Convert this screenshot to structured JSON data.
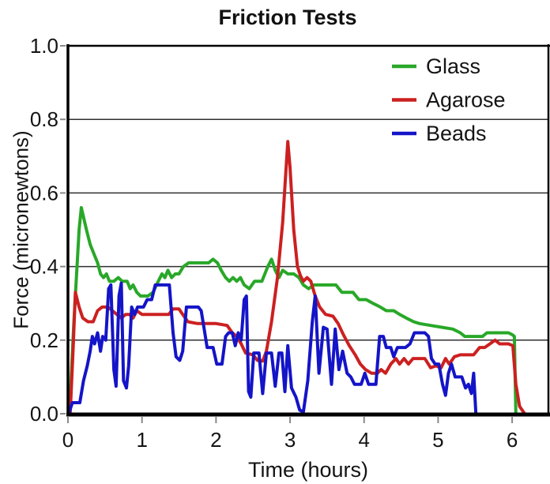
{
  "chart_data": {
    "type": "line",
    "title": "Friction Tests",
    "xlabel": "Time (hours)",
    "ylabel": "Force (micronewtons)",
    "xlim": [
      0,
      6.49
    ],
    "ylim": [
      0,
      1.0
    ],
    "xtick_values": [
      0,
      1,
      2,
      3,
      4,
      5,
      6
    ],
    "xtick_labels": [
      "0",
      "1",
      "2",
      "3",
      "4",
      "5",
      "6"
    ],
    "ytick_values": [
      0,
      0.2,
      0.4,
      0.6,
      0.8,
      1.0
    ],
    "ytick_labels": [
      "0.0",
      "0.2",
      "0.4",
      "0.6",
      "0.8",
      "1.0"
    ],
    "grid": "horizontal gridlines at each y tick, plot framed in black",
    "legend_position": "top-right inside plot, no border",
    "frame_color": "#000000",
    "gridline_color": "#2f2f2f",
    "tick_color": "#8a8a8a",
    "text_color": "#141414",
    "series": [
      {
        "name": "Glass",
        "color": "#28a828",
        "points": [
          [
            0.02,
            0
          ],
          [
            0.08,
            0.25
          ],
          [
            0.15,
            0.5
          ],
          [
            0.18,
            0.56
          ],
          [
            0.25,
            0.5
          ],
          [
            0.3,
            0.46
          ],
          [
            0.36,
            0.43
          ],
          [
            0.4,
            0.41
          ],
          [
            0.44,
            0.38
          ],
          [
            0.48,
            0.37
          ],
          [
            0.52,
            0.38
          ],
          [
            0.56,
            0.36
          ],
          [
            0.62,
            0.36
          ],
          [
            0.68,
            0.37
          ],
          [
            0.73,
            0.36
          ],
          [
            0.8,
            0.36
          ],
          [
            0.84,
            0.34
          ],
          [
            0.88,
            0.35
          ],
          [
            0.93,
            0.33
          ],
          [
            0.98,
            0.32
          ],
          [
            1.08,
            0.32
          ],
          [
            1.15,
            0.33
          ],
          [
            1.22,
            0.36
          ],
          [
            1.27,
            0.38
          ],
          [
            1.31,
            0.37
          ],
          [
            1.35,
            0.39
          ],
          [
            1.4,
            0.37
          ],
          [
            1.45,
            0.38
          ],
          [
            1.5,
            0.38
          ],
          [
            1.56,
            0.4
          ],
          [
            1.63,
            0.41
          ],
          [
            1.72,
            0.41
          ],
          [
            1.82,
            0.41
          ],
          [
            1.9,
            0.41
          ],
          [
            1.96,
            0.42
          ],
          [
            2.02,
            0.41
          ],
          [
            2.07,
            0.39
          ],
          [
            2.13,
            0.37
          ],
          [
            2.18,
            0.36
          ],
          [
            2.23,
            0.37
          ],
          [
            2.28,
            0.36
          ],
          [
            2.33,
            0.37
          ],
          [
            2.38,
            0.35
          ],
          [
            2.45,
            0.34
          ],
          [
            2.52,
            0.36
          ],
          [
            2.62,
            0.36
          ],
          [
            2.7,
            0.4
          ],
          [
            2.75,
            0.42
          ],
          [
            2.8,
            0.39
          ],
          [
            2.85,
            0.37
          ],
          [
            2.9,
            0.39
          ],
          [
            2.97,
            0.38
          ],
          [
            3.05,
            0.38
          ],
          [
            3.12,
            0.37
          ],
          [
            3.18,
            0.35
          ],
          [
            3.25,
            0.34
          ],
          [
            3.32,
            0.35
          ],
          [
            3.4,
            0.35
          ],
          [
            3.52,
            0.35
          ],
          [
            3.62,
            0.35
          ],
          [
            3.7,
            0.33
          ],
          [
            3.85,
            0.33
          ],
          [
            3.93,
            0.31
          ],
          [
            4.03,
            0.31
          ],
          [
            4.12,
            0.3
          ],
          [
            4.22,
            0.29
          ],
          [
            4.3,
            0.28
          ],
          [
            4.4,
            0.28
          ],
          [
            4.48,
            0.27
          ],
          [
            4.57,
            0.26
          ],
          [
            4.67,
            0.25
          ],
          [
            4.75,
            0.245
          ],
          [
            4.9,
            0.24
          ],
          [
            5.05,
            0.235
          ],
          [
            5.2,
            0.23
          ],
          [
            5.3,
            0.22
          ],
          [
            5.36,
            0.21
          ],
          [
            5.5,
            0.21
          ],
          [
            5.6,
            0.21
          ],
          [
            5.66,
            0.22
          ],
          [
            5.85,
            0.22
          ],
          [
            5.95,
            0.22
          ],
          [
            6.0,
            0.215
          ],
          [
            6.03,
            0.21
          ],
          [
            6.05,
            0
          ]
        ]
      },
      {
        "name": "Agarose",
        "color": "#cc2020",
        "points": [
          [
            0.03,
            0
          ],
          [
            0.07,
            0.18
          ],
          [
            0.1,
            0.33
          ],
          [
            0.15,
            0.29
          ],
          [
            0.2,
            0.26
          ],
          [
            0.27,
            0.25
          ],
          [
            0.34,
            0.25
          ],
          [
            0.4,
            0.28
          ],
          [
            0.46,
            0.29
          ],
          [
            0.54,
            0.29
          ],
          [
            0.6,
            0.28
          ],
          [
            0.66,
            0.27
          ],
          [
            0.72,
            0.26
          ],
          [
            0.78,
            0.27
          ],
          [
            0.83,
            0.27
          ],
          [
            0.88,
            0.26
          ],
          [
            0.93,
            0.28
          ],
          [
            1.0,
            0.27
          ],
          [
            1.2,
            0.27
          ],
          [
            1.36,
            0.27
          ],
          [
            1.42,
            0.285
          ],
          [
            1.5,
            0.285
          ],
          [
            1.55,
            0.27
          ],
          [
            1.62,
            0.25
          ],
          [
            1.75,
            0.245
          ],
          [
            2.0,
            0.245
          ],
          [
            2.15,
            0.24
          ],
          [
            2.22,
            0.22
          ],
          [
            2.28,
            0.21
          ],
          [
            2.34,
            0.19
          ],
          [
            2.4,
            0.165
          ],
          [
            2.5,
            0.16
          ],
          [
            2.56,
            0.145
          ],
          [
            2.63,
            0.143
          ],
          [
            2.68,
            0.17
          ],
          [
            2.75,
            0.25
          ],
          [
            2.83,
            0.37
          ],
          [
            2.9,
            0.52
          ],
          [
            2.95,
            0.68
          ],
          [
            2.97,
            0.74
          ],
          [
            3.0,
            0.67
          ],
          [
            3.05,
            0.5
          ],
          [
            3.1,
            0.4
          ],
          [
            3.14,
            0.375
          ],
          [
            3.18,
            0.36
          ],
          [
            3.23,
            0.37
          ],
          [
            3.28,
            0.36
          ],
          [
            3.34,
            0.32
          ],
          [
            3.4,
            0.29
          ],
          [
            3.48,
            0.27
          ],
          [
            3.58,
            0.265
          ],
          [
            3.65,
            0.245
          ],
          [
            3.72,
            0.215
          ],
          [
            3.8,
            0.185
          ],
          [
            3.88,
            0.16
          ],
          [
            3.95,
            0.135
          ],
          [
            4.02,
            0.12
          ],
          [
            4.1,
            0.11
          ],
          [
            4.18,
            0.11
          ],
          [
            4.23,
            0.12
          ],
          [
            4.29,
            0.11
          ],
          [
            4.36,
            0.135
          ],
          [
            4.43,
            0.15
          ],
          [
            4.48,
            0.135
          ],
          [
            4.54,
            0.15
          ],
          [
            4.6,
            0.135
          ],
          [
            4.66,
            0.15
          ],
          [
            4.82,
            0.15
          ],
          [
            4.9,
            0.125
          ],
          [
            4.97,
            0.13
          ],
          [
            5.04,
            0.125
          ],
          [
            5.1,
            0.15
          ],
          [
            5.15,
            0.135
          ],
          [
            5.22,
            0.155
          ],
          [
            5.3,
            0.16
          ],
          [
            5.48,
            0.16
          ],
          [
            5.56,
            0.18
          ],
          [
            5.63,
            0.18
          ],
          [
            5.7,
            0.19
          ],
          [
            5.77,
            0.2
          ],
          [
            5.83,
            0.19
          ],
          [
            5.95,
            0.19
          ],
          [
            6.01,
            0.185
          ],
          [
            6.05,
            0.08
          ],
          [
            6.1,
            0.02
          ],
          [
            6.17,
            0
          ]
        ]
      },
      {
        "name": "Beads",
        "color": "#1414c8",
        "points": [
          [
            0.01,
            0
          ],
          [
            0.06,
            0.03
          ],
          [
            0.16,
            0.03
          ],
          [
            0.21,
            0.09
          ],
          [
            0.26,
            0.13
          ],
          [
            0.3,
            0.17
          ],
          [
            0.33,
            0.21
          ],
          [
            0.36,
            0.19
          ],
          [
            0.4,
            0.22
          ],
          [
            0.44,
            0.17
          ],
          [
            0.47,
            0.21
          ],
          [
            0.51,
            0.2
          ],
          [
            0.55,
            0.34
          ],
          [
            0.58,
            0.35
          ],
          [
            0.62,
            0.12
          ],
          [
            0.65,
            0.075
          ],
          [
            0.69,
            0.32
          ],
          [
            0.72,
            0.355
          ],
          [
            0.75,
            0.09
          ],
          [
            0.79,
            0.07
          ],
          [
            0.82,
            0.13
          ],
          [
            0.86,
            0.29
          ],
          [
            0.9,
            0.27
          ],
          [
            0.94,
            0.29
          ],
          [
            1.02,
            0.29
          ],
          [
            1.07,
            0.31
          ],
          [
            1.13,
            0.31
          ],
          [
            1.18,
            0.35
          ],
          [
            1.25,
            0.35
          ],
          [
            1.37,
            0.35
          ],
          [
            1.42,
            0.22
          ],
          [
            1.46,
            0.155
          ],
          [
            1.51,
            0.145
          ],
          [
            1.55,
            0.17
          ],
          [
            1.6,
            0.29
          ],
          [
            1.68,
            0.29
          ],
          [
            1.76,
            0.29
          ],
          [
            1.8,
            0.28
          ],
          [
            1.84,
            0.23
          ],
          [
            1.88,
            0.18
          ],
          [
            1.96,
            0.18
          ],
          [
            2.01,
            0.135
          ],
          [
            2.08,
            0.135
          ],
          [
            2.13,
            0.21
          ],
          [
            2.17,
            0.22
          ],
          [
            2.22,
            0.22
          ],
          [
            2.26,
            0.185
          ],
          [
            2.3,
            0.22
          ],
          [
            2.34,
            0.2
          ],
          [
            2.38,
            0.31
          ],
          [
            2.41,
            0.32
          ],
          [
            2.44,
            0.06
          ],
          [
            2.47,
            0.045
          ],
          [
            2.51,
            0.165
          ],
          [
            2.58,
            0.165
          ],
          [
            2.63,
            0.055
          ],
          [
            2.68,
            0.165
          ],
          [
            2.75,
            0.165
          ],
          [
            2.8,
            0.075
          ],
          [
            2.85,
            0.165
          ],
          [
            2.89,
            0.165
          ],
          [
            2.93,
            0.06
          ],
          [
            2.97,
            0.185
          ],
          [
            3.02,
            0.07
          ],
          [
            3.08,
            0.045
          ],
          [
            3.13,
            0.01
          ],
          [
            3.18,
            0.005
          ],
          [
            3.24,
            0.09
          ],
          [
            3.3,
            0.25
          ],
          [
            3.34,
            0.32
          ],
          [
            3.39,
            0.11
          ],
          [
            3.45,
            0.235
          ],
          [
            3.5,
            0.23
          ],
          [
            3.56,
            0.08
          ],
          [
            3.61,
            0.23
          ],
          [
            3.66,
            0.12
          ],
          [
            3.71,
            0.17
          ],
          [
            3.77,
            0.11
          ],
          [
            3.82,
            0.1
          ],
          [
            3.87,
            0.08
          ],
          [
            3.96,
            0.08
          ],
          [
            4.01,
            0.11
          ],
          [
            4.06,
            0.08
          ],
          [
            4.16,
            0.08
          ],
          [
            4.21,
            0.21
          ],
          [
            4.26,
            0.21
          ],
          [
            4.3,
            0.18
          ],
          [
            4.36,
            0.18
          ],
          [
            4.4,
            0.155
          ],
          [
            4.45,
            0.18
          ],
          [
            4.56,
            0.18
          ],
          [
            4.62,
            0.19
          ],
          [
            4.68,
            0.22
          ],
          [
            4.82,
            0.22
          ],
          [
            4.87,
            0.21
          ],
          [
            4.91,
            0.15
          ],
          [
            4.96,
            0.135
          ],
          [
            5.01,
            0.135
          ],
          [
            5.06,
            0.08
          ],
          [
            5.1,
            0.05
          ],
          [
            5.14,
            0.11
          ],
          [
            5.18,
            0.135
          ],
          [
            5.23,
            0.1
          ],
          [
            5.32,
            0.1
          ],
          [
            5.37,
            0.07
          ],
          [
            5.41,
            0.08
          ],
          [
            5.45,
            0.055
          ],
          [
            5.48,
            0.11
          ],
          [
            5.51,
            0
          ]
        ]
      }
    ]
  }
}
